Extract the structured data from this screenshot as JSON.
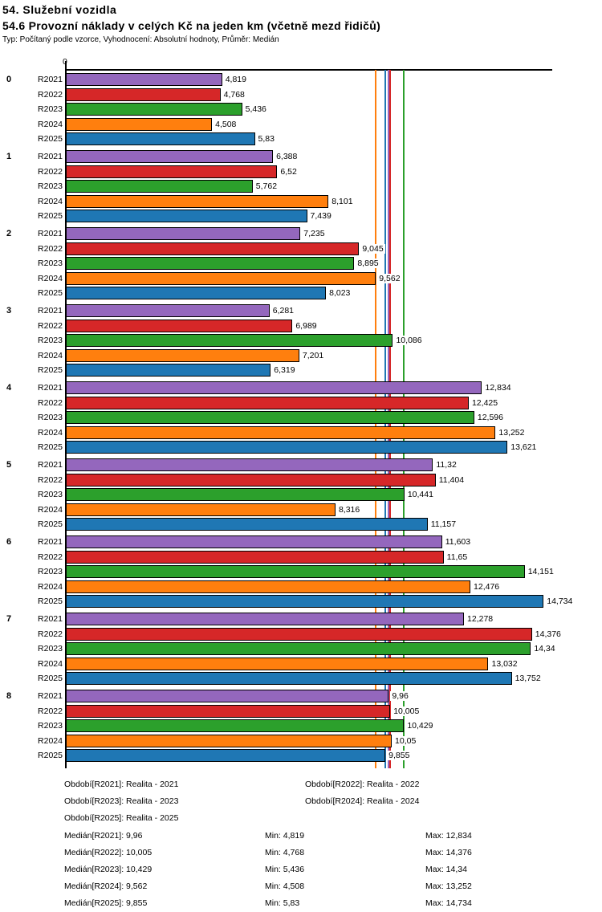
{
  "header": {
    "title1": "54. Služební vozidla",
    "title2": "54.6 Provozní náklady v celých Kč na jeden km (včetně mezd řidičů)",
    "meta": "Typ: Počítaný podle vzorce, Vyhodnocení: Absolutní hodnoty, Průměr: Medián"
  },
  "chart_data": {
    "type": "bar",
    "orientation": "horizontal",
    "title": "54.6 Provozní náklady v celých Kč na jeden km (včetně mezd řidičů)",
    "xlim": [
      0,
      15
    ],
    "axis": {
      "origin_label": "0"
    },
    "grid": false,
    "series_names": [
      "R2021",
      "R2022",
      "R2023",
      "R2024",
      "R2025"
    ],
    "series_colors": {
      "R2021": "#9467bd",
      "R2022": "#d62728",
      "R2023": "#2ca02c",
      "R2024": "#ff7f0e",
      "R2025": "#1f77b4"
    },
    "bar_border_color": "#000000",
    "groups": [
      {
        "label": "0",
        "values": [
          4.819,
          4.768,
          5.436,
          4.508,
          5.83
        ],
        "display": [
          "4,819",
          "4,768",
          "5,436",
          "4,508",
          "5,83"
        ]
      },
      {
        "label": "1",
        "values": [
          6.388,
          6.52,
          5.762,
          8.101,
          7.439
        ],
        "display": [
          "6,388",
          "6,52",
          "5,762",
          "8,101",
          "7,439"
        ]
      },
      {
        "label": "2",
        "values": [
          7.235,
          9.045,
          8.895,
          9.562,
          8.023
        ],
        "display": [
          "7,235",
          "9,045",
          "8,895",
          "9,562",
          "8,023"
        ]
      },
      {
        "label": "3",
        "values": [
          6.281,
          6.989,
          10.086,
          7.201,
          6.319
        ],
        "display": [
          "6,281",
          "6,989",
          "10,086",
          "7,201",
          "6,319"
        ]
      },
      {
        "label": "4",
        "values": [
          12.834,
          12.425,
          12.596,
          13.252,
          13.621
        ],
        "display": [
          "12,834",
          "12,425",
          "12,596",
          "13,252",
          "13,621"
        ]
      },
      {
        "label": "5",
        "values": [
          11.32,
          11.404,
          10.441,
          8.316,
          11.157
        ],
        "display": [
          "11,32",
          "11,404",
          "10,441",
          "8,316",
          "11,157"
        ]
      },
      {
        "label": "6",
        "values": [
          11.603,
          11.65,
          14.151,
          12.476,
          14.734
        ],
        "display": [
          "11,603",
          "11,65",
          "14,151",
          "12,476",
          "14,734"
        ]
      },
      {
        "label": "7",
        "values": [
          12.278,
          14.376,
          14.34,
          13.032,
          13.752
        ],
        "display": [
          "12,278",
          "14,376",
          "14,34",
          "13,032",
          "13,752"
        ]
      },
      {
        "label": "8",
        "values": [
          9.96,
          10.005,
          10.429,
          10.05,
          9.855
        ],
        "display": [
          "9,96",
          "10,005",
          "10,429",
          "10,05",
          "9,855"
        ]
      }
    ],
    "median_lines": [
      {
        "series": "R2021",
        "value": 9.96,
        "color": "#9467bd"
      },
      {
        "series": "R2022",
        "value": 10.005,
        "color": "#d62728"
      },
      {
        "series": "R2023",
        "value": 10.429,
        "color": "#2ca02c"
      },
      {
        "series": "R2024",
        "value": 9.562,
        "color": "#ff7f0e"
      },
      {
        "series": "R2025",
        "value": 9.855,
        "color": "#1f77b4"
      }
    ]
  },
  "legend": {
    "items": [
      "Období[R2021]: Realita - 2021",
      "Období[R2022]: Realita - 2022",
      "Období[R2023]: Realita - 2023",
      "Období[R2024]: Realita - 2024",
      "Období[R2025]: Realita - 2025"
    ]
  },
  "stats": {
    "rows": [
      {
        "median": "Medián[R2021]: 9,96",
        "min": "Min: 4,819",
        "max": "Max: 12,834"
      },
      {
        "median": "Medián[R2022]: 10,005",
        "min": "Min: 4,768",
        "max": "Max: 14,376"
      },
      {
        "median": "Medián[R2023]: 10,429",
        "min": "Min: 5,436",
        "max": "Max: 14,34"
      },
      {
        "median": "Medián[R2024]: 9,562",
        "min": "Min: 4,508",
        "max": "Max: 13,252"
      },
      {
        "median": "Medián[R2025]: 9,855",
        "min": "Min: 5,83",
        "max": "Max: 14,734"
      }
    ]
  }
}
